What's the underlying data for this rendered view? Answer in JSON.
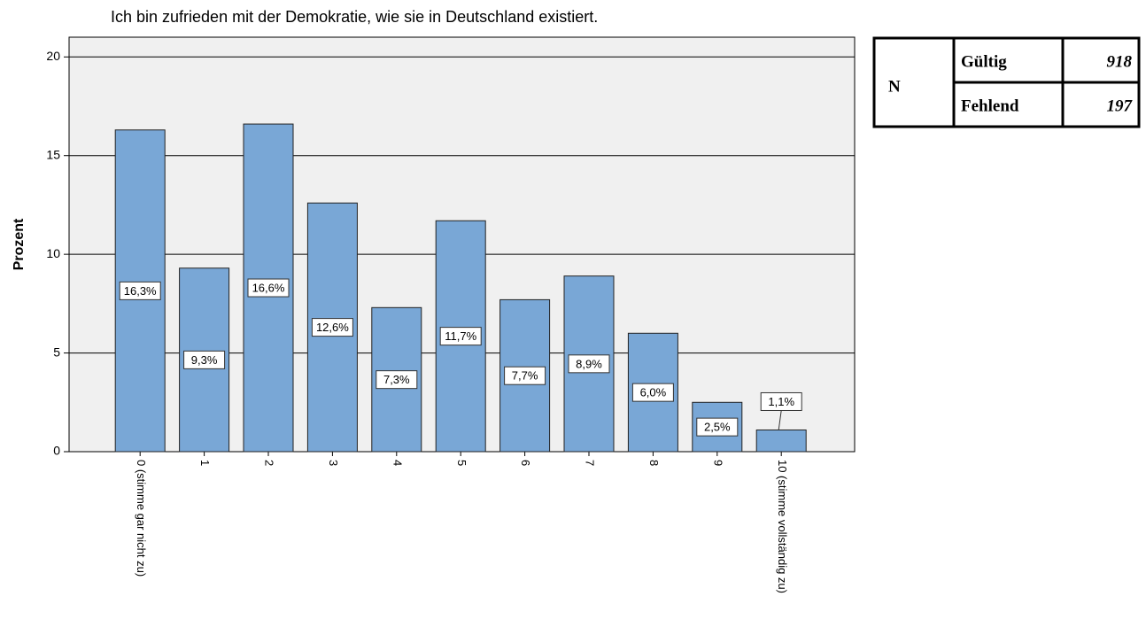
{
  "chart_data": {
    "type": "bar",
    "title": "Ich bin zufrieden mit der Demokratie, wie sie in Deutschland existiert.",
    "y_label": "Prozent",
    "categories": [
      "0 (stimme gar nicht zu)",
      "1",
      "2",
      "3",
      "4",
      "5",
      "6",
      "7",
      "8",
      "9",
      "10 (stimme vollständig zu)"
    ],
    "values": [
      16.3,
      9.3,
      16.6,
      12.6,
      7.3,
      11.7,
      7.7,
      8.9,
      6.0,
      2.5,
      1.1
    ],
    "value_labels": [
      "16,3%",
      "9,3%",
      "16,6%",
      "12,6%",
      "7,3%",
      "11,7%",
      "7,7%",
      "8,9%",
      "6,0%",
      "2,5%",
      "1,1%"
    ],
    "color": "#79a7d6",
    "ylim": [
      0,
      21
    ],
    "yticks": [
      0,
      5,
      10,
      15,
      20
    ],
    "grid": true
  },
  "table": {
    "rows": [
      [
        "N",
        "Gültig",
        "918"
      ],
      [
        "Fehlend",
        "197"
      ]
    ]
  }
}
